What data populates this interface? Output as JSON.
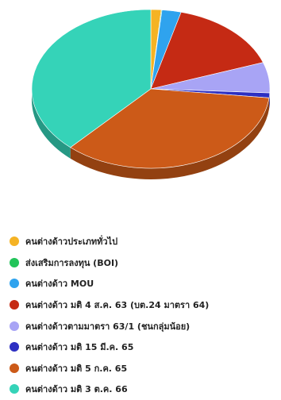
{
  "chart_data": {
    "type": "pie",
    "style": "3d",
    "legend_position": "bottom-left",
    "title": "",
    "slices": [
      {
        "label": "คนต่างด้าวประเภททั่วไป",
        "value": 1.4,
        "color": "#f5b324"
      },
      {
        "label": "ส่งเสริมการลงทุน (BOI)",
        "value": 0.1,
        "color": "#22c45a"
      },
      {
        "label": "คนต่างด้าว MOU",
        "value": 2.6,
        "color": "#2fa3ee"
      },
      {
        "label": "คนต่างด้าว มติ 4 ส.ค. 63 (บต.24 มาตรา 64)",
        "value": 15.5,
        "color": "#c52a14"
      },
      {
        "label": "คนต่างด้าวตามมาตรา 63/1 (ชนกลุ่มน้อย)",
        "value": 6.2,
        "color": "#a8a4f5"
      },
      {
        "label": "คนต่างด้าว มติ 15 มี.ค. 65",
        "value": 1.0,
        "color": "#2d2fc2"
      },
      {
        "label": "คนต่างด้าว มติ 5 ก.ค. 65",
        "value": 35.0,
        "color": "#cc5a18"
      },
      {
        "label": "คนต่างด้าว มติ 3 ต.ค. 66",
        "value": 38.2,
        "color": "#35d3b8"
      }
    ]
  }
}
